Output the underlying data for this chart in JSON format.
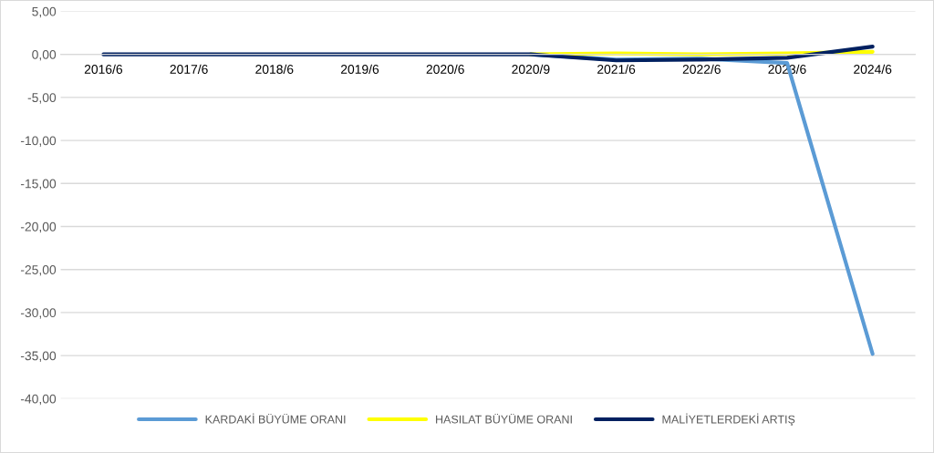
{
  "chart_data": {
    "type": "line",
    "categories": [
      "2016/6",
      "2017/6",
      "2018/6",
      "2019/6",
      "2020/6",
      "2020/9",
      "2021/6",
      "2022/6",
      "2023/6",
      "2024/6"
    ],
    "series": [
      {
        "name": "KARDAKİ BÜYÜME ORANI",
        "color": "#5b9bd5",
        "values": [
          null,
          null,
          null,
          null,
          null,
          0,
          -0.6,
          -0.5,
          -1.0,
          -34.8
        ]
      },
      {
        "name": "HASILAT BÜYÜME ORANI",
        "color": "#ffff00",
        "values": [
          null,
          null,
          null,
          null,
          null,
          0,
          0.1,
          0,
          0.1,
          0.3
        ]
      },
      {
        "name": "MALİYETLERDEKİ ARTIŞ",
        "color": "#002060",
        "values": [
          0,
          0,
          0,
          0,
          0,
          0,
          -0.7,
          -0.6,
          -0.4,
          0.9
        ]
      }
    ],
    "ylim": [
      -40,
      5
    ],
    "yticks": [
      {
        "value": 5,
        "label": "5,00"
      },
      {
        "value": 0,
        "label": "0,00"
      },
      {
        "value": -5,
        "label": "-5,00"
      },
      {
        "value": -10,
        "label": "-10,00"
      },
      {
        "value": -15,
        "label": "-15,00"
      },
      {
        "value": -20,
        "label": "-20,00"
      },
      {
        "value": -25,
        "label": "-25,00"
      },
      {
        "value": -30,
        "label": "-30,00"
      },
      {
        "value": -35,
        "label": "-35,00"
      },
      {
        "value": -40,
        "label": "-40,00"
      }
    ],
    "grid": "y",
    "legend": "bottom",
    "marker": "none",
    "line_style": "solid"
  }
}
